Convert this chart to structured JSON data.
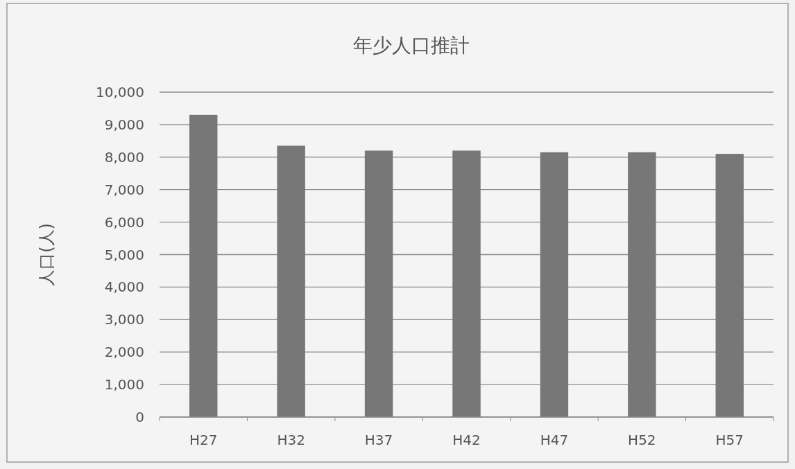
{
  "chart_data": {
    "type": "bar",
    "title": "年少人口推計",
    "ylabel": "人口(人)",
    "categories": [
      "H27",
      "H32",
      "H37",
      "H42",
      "H47",
      "H52",
      "H57"
    ],
    "values": [
      9300,
      8350,
      8200,
      8200,
      8150,
      8150,
      8100
    ],
    "color": "#777777",
    "ylim": [
      0,
      10000
    ],
    "yticks": [
      {
        "value": 0,
        "label": "0"
      },
      {
        "value": 1000,
        "label": "1,000"
      },
      {
        "value": 2000,
        "label": "2,000"
      },
      {
        "value": 3000,
        "label": "3,000"
      },
      {
        "value": 4000,
        "label": "4,000"
      },
      {
        "value": 5000,
        "label": "5,000"
      },
      {
        "value": 6000,
        "label": "6,000"
      },
      {
        "value": 7000,
        "label": "7,000"
      },
      {
        "value": 8000,
        "label": "8,000"
      },
      {
        "value": 9000,
        "label": "9,000"
      },
      {
        "value": 10000,
        "label": "10,000"
      }
    ],
    "grid": "y"
  }
}
